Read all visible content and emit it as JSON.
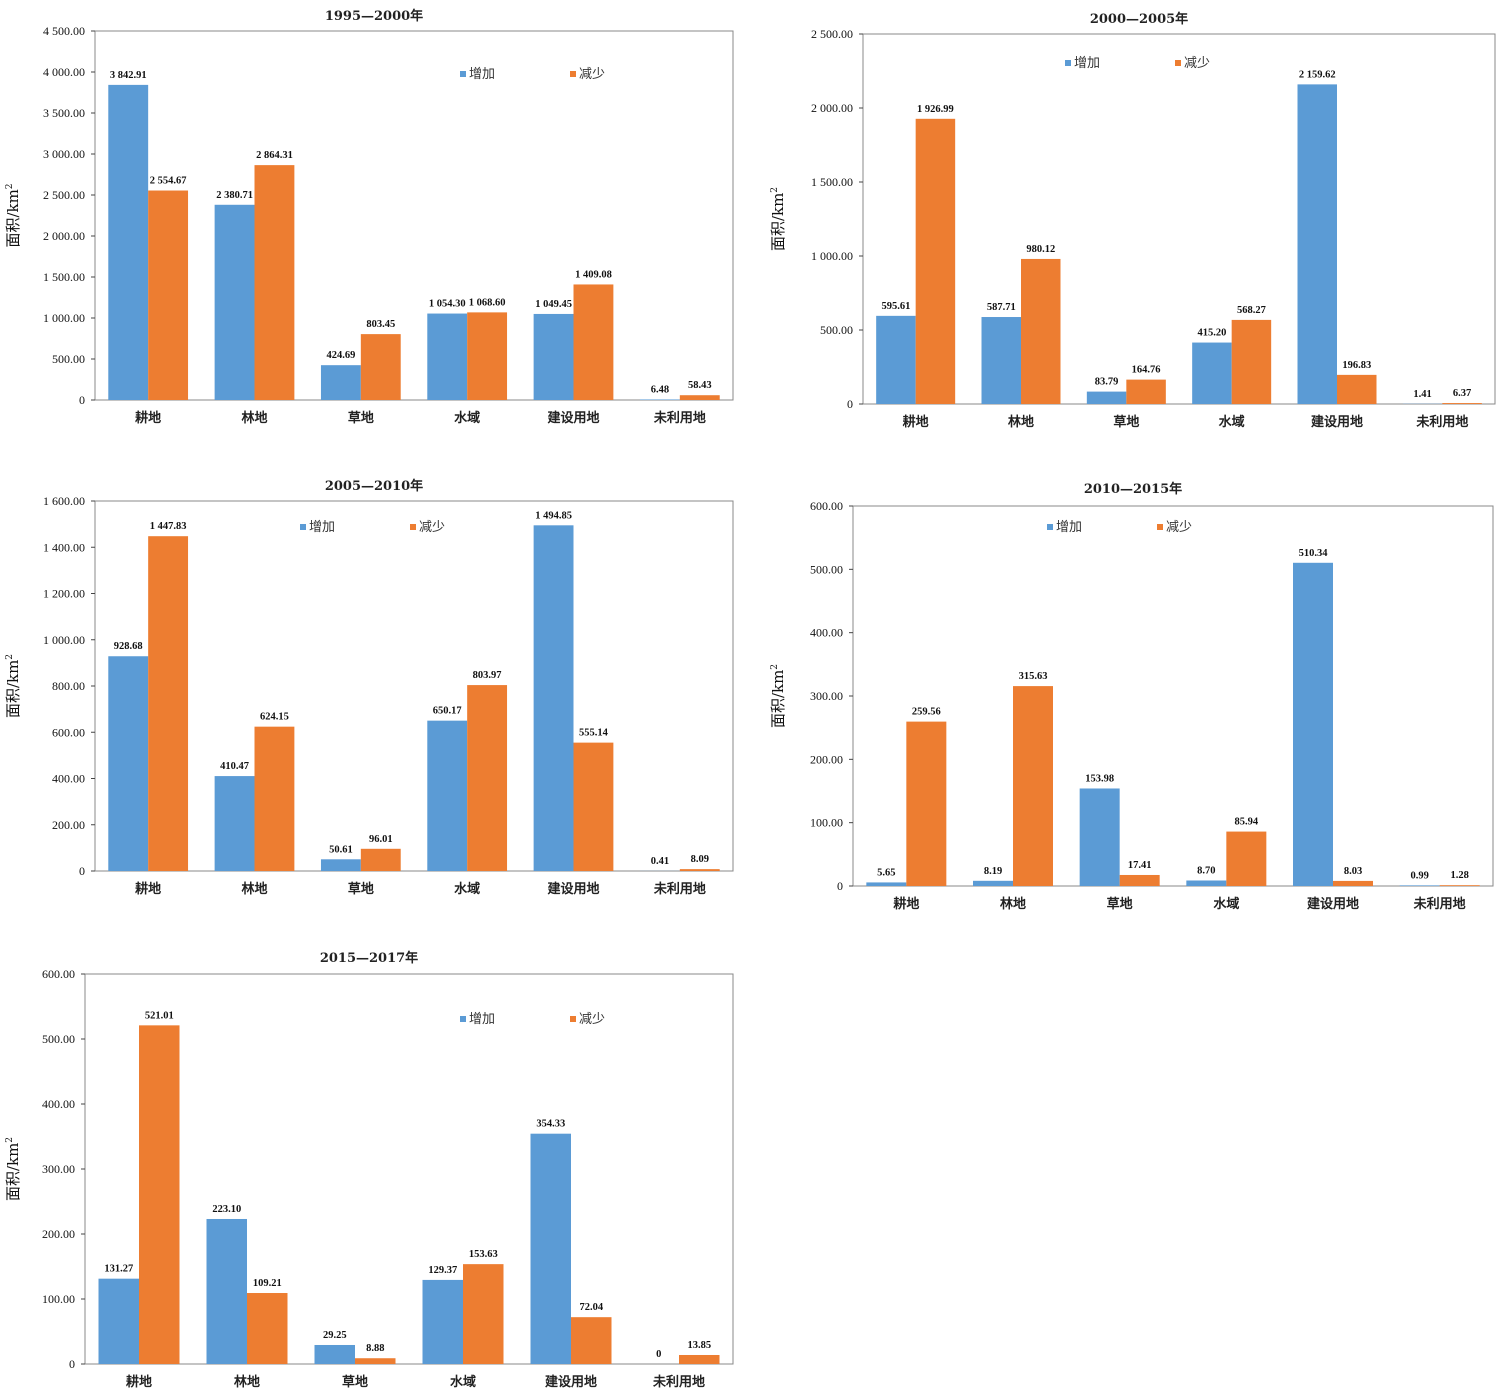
{
  "chart_data": [
    {
      "type": "bar",
      "title": "1995—2000年",
      "ylabel": "面积/km",
      "ylabel_sup": "2",
      "categories": [
        "耕地",
        "林地",
        "草地",
        "水域",
        "建设用地",
        "未利用地"
      ],
      "series": [
        {
          "name": "增加",
          "values": [
            3842.91,
            2380.71,
            424.69,
            1054.3,
            1049.45,
            6.48
          ],
          "labels": [
            "3 842.91",
            "2 380.71",
            "424.69",
            "1 054.30",
            "1 049.45",
            "6.48"
          ]
        },
        {
          "name": "减少",
          "values": [
            2554.67,
            2864.31,
            803.45,
            1068.6,
            1409.08,
            58.43
          ],
          "labels": [
            "2 554.67",
            "2 864.31",
            "803.45",
            "1 068.60",
            "1 409.08",
            "58.43"
          ]
        }
      ],
      "ylim": [
        0,
        4500
      ],
      "yticks": [
        "0",
        "500.00",
        "1 000.00",
        "1 500.00",
        "2 000.00",
        "2 500.00",
        "3 000.00",
        "3 500.00",
        "4 000.00",
        "4 500.00"
      ],
      "legend": "top-right",
      "grid": false
    },
    {
      "type": "bar",
      "title": "2000—2005年",
      "ylabel": "面积/km",
      "ylabel_sup": "2",
      "categories": [
        "耕地",
        "林地",
        "草地",
        "水域",
        "建设用地",
        "未利用地"
      ],
      "series": [
        {
          "name": "增加",
          "values": [
            595.61,
            587.71,
            83.79,
            415.2,
            2159.62,
            1.41
          ],
          "labels": [
            "595.61",
            "587.71",
            "83.79",
            "415.20",
            "2 159.62",
            "1.41"
          ]
        },
        {
          "name": "减少",
          "values": [
            1926.99,
            980.12,
            164.76,
            568.27,
            196.83,
            6.37
          ],
          "labels": [
            "1 926.99",
            "980.12",
            "164.76",
            "568.27",
            "196.83",
            "6.37"
          ]
        }
      ],
      "ylim": [
        0,
        2500
      ],
      "yticks": [
        "0",
        "500.00",
        "1 000.00",
        "1 500.00",
        "2 000.00",
        "2 500.00"
      ],
      "legend": "top-center",
      "grid": false
    },
    {
      "type": "bar",
      "title": "2005—2010年",
      "ylabel": "面积/km",
      "ylabel_sup": "2",
      "categories": [
        "耕地",
        "林地",
        "草地",
        "水域",
        "建设用地",
        "未利用地"
      ],
      "series": [
        {
          "name": "增加",
          "values": [
            928.68,
            410.47,
            50.61,
            650.17,
            1494.85,
            0.41
          ],
          "labels": [
            "928.68",
            "410.47",
            "50.61",
            "650.17",
            "1 494.85",
            "0.41"
          ]
        },
        {
          "name": "减少",
          "values": [
            1447.83,
            624.15,
            96.01,
            803.97,
            555.14,
            8.09
          ],
          "labels": [
            "1 447.83",
            "624.15",
            "96.01",
            "803.97",
            "555.14",
            "8.09"
          ]
        }
      ],
      "ylim": [
        0,
        1600
      ],
      "yticks": [
        "0",
        "200.00",
        "400.00",
        "600.00",
        "800.00",
        "1 000.00",
        "1 200.00",
        "1 400.00",
        "1 600.00"
      ],
      "legend": "top-center",
      "grid": false
    },
    {
      "type": "bar",
      "title": "2010—2015年",
      "ylabel": "面积/km",
      "ylabel_sup": "2",
      "categories": [
        "耕地",
        "林地",
        "草地",
        "水域",
        "建设用地",
        "未利用地"
      ],
      "series": [
        {
          "name": "增加",
          "values": [
            5.65,
            8.19,
            153.98,
            8.7,
            510.34,
            0.99
          ],
          "labels": [
            "5.65",
            "8.19",
            "153.98",
            "8.70",
            "510.34",
            "0.99"
          ]
        },
        {
          "name": "减少",
          "values": [
            259.56,
            315.63,
            17.41,
            85.94,
            8.03,
            1.28
          ],
          "labels": [
            "259.56",
            "315.63",
            "17.41",
            "85.94",
            "8.03",
            "1.28"
          ]
        }
      ],
      "ylim": [
        0,
        600
      ],
      "yticks": [
        "0",
        "100.00",
        "200.00",
        "300.00",
        "400.00",
        "500.00",
        "600.00"
      ],
      "legend": "top-center",
      "grid": false
    },
    {
      "type": "bar",
      "title": "2015—2017年",
      "ylabel": "面积/km",
      "ylabel_sup": "2",
      "categories": [
        "耕地",
        "林地",
        "草地",
        "水域",
        "建设用地",
        "未利用地"
      ],
      "series": [
        {
          "name": "增加",
          "values": [
            131.27,
            223.1,
            29.25,
            129.37,
            354.33,
            0
          ],
          "labels": [
            "131.27",
            "223.10",
            "29.25",
            "129.37",
            "354.33",
            "0"
          ]
        },
        {
          "name": "减少",
          "values": [
            521.01,
            109.21,
            8.88,
            153.63,
            72.04,
            13.85
          ],
          "labels": [
            "521.01",
            "109.21",
            "8.88",
            "153.63",
            "72.04",
            "13.85"
          ]
        }
      ],
      "ylim": [
        0,
        600
      ],
      "yticks": [
        "0",
        "100.00",
        "200.00",
        "300.00",
        "400.00",
        "500.00",
        "600.00"
      ],
      "legend": "top-right",
      "grid": false
    }
  ],
  "colors": {
    "increase": "#5b9bd5",
    "decrease": "#ed7d31",
    "axis": "#444444"
  }
}
